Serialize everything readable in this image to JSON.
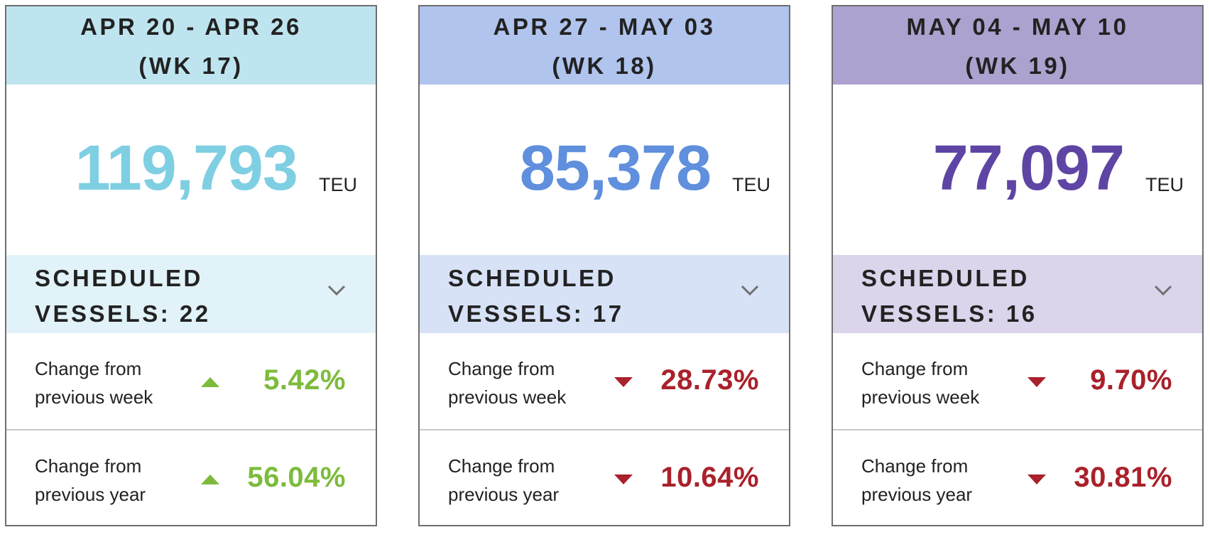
{
  "cards": [
    {
      "week_range": "APR 20 - APR 26",
      "week_number": "(WK 17)",
      "total": "119,793",
      "unit": "TEU",
      "scheduled_vessels_line1": "SCHEDULED",
      "scheduled_vessels_line2": "VESSELS: 22",
      "changes": [
        {
          "label_line1": "Change from",
          "label_line2": "previous week",
          "direction": "up",
          "value": "5.42%"
        },
        {
          "label_line1": "Change from",
          "label_line2": "previous year",
          "direction": "up",
          "value": "56.04%"
        }
      ],
      "colors": {
        "header": "#bee5ef",
        "total": "#7fcfe3",
        "vessels_bg": "#e1f2f8"
      }
    },
    {
      "week_range": "APR 27 - MAY 03",
      "week_number": "(WK 18)",
      "total": "85,378",
      "unit": "TEU",
      "scheduled_vessels_line1": "SCHEDULED",
      "scheduled_vessels_line2": "VESSELS: 17",
      "changes": [
        {
          "label_line1": "Change from",
          "label_line2": "previous week",
          "direction": "down",
          "value": "28.73%"
        },
        {
          "label_line1": "Change from",
          "label_line2": "previous year",
          "direction": "down",
          "value": "10.64%"
        }
      ],
      "colors": {
        "header": "#b0c4ee",
        "total": "#5f8fdd",
        "vessels_bg": "#d7e2f7"
      }
    },
    {
      "week_range": "MAY 04 - MAY 10",
      "week_number": "(WK 19)",
      "total": "77,097",
      "unit": "TEU",
      "scheduled_vessels_line1": "SCHEDULED",
      "scheduled_vessels_line2": "VESSELS: 16",
      "changes": [
        {
          "label_line1": "Change from",
          "label_line2": "previous week",
          "direction": "down",
          "value": "9.70%"
        },
        {
          "label_line1": "Change from",
          "label_line2": "previous year",
          "direction": "down",
          "value": "30.81%"
        }
      ],
      "colors": {
        "header": "#ada1cf",
        "total": "#5e45a4",
        "vessels_bg": "#dbd4ea"
      }
    }
  ],
  "status_colors": {
    "up": "#7dbb3c",
    "down": "#a9212b",
    "chevron": "#707070"
  },
  "icons": {
    "expand": "chevron-down-icon",
    "up": "triangle-up-icon",
    "down": "triangle-down-icon"
  }
}
